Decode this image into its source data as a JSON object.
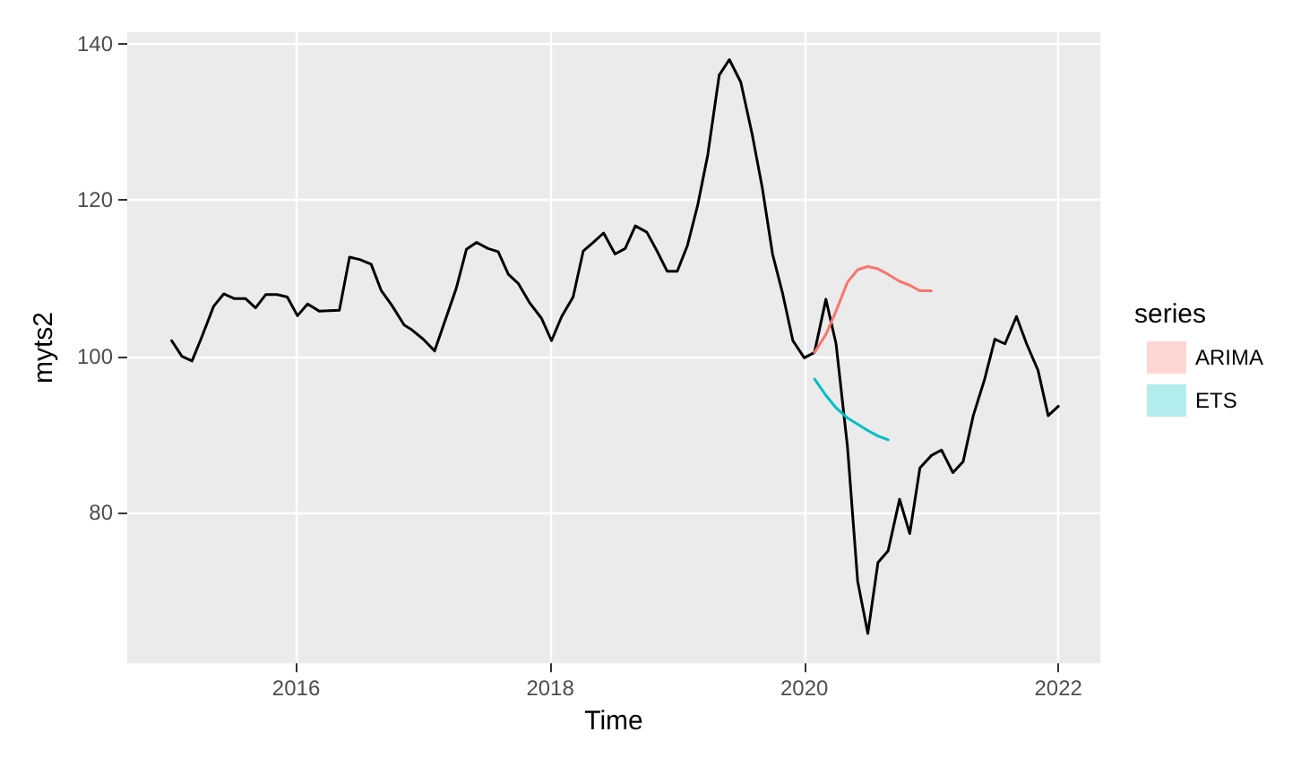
{
  "chart_data": {
    "type": "line",
    "xlabel": "Time",
    "ylabel": "myts2",
    "legend_title": "series",
    "legend": "right",
    "grid": true,
    "marker": "none",
    "line_style": "solid",
    "xlim": [
      2014.67,
      2022.33
    ],
    "xticks": [
      2016,
      2018,
      2020,
      2022
    ],
    "ylim": [
      60.7,
      141.5
    ],
    "yticks": [
      80,
      100,
      120,
      140
    ],
    "series": [
      {
        "color": "#000000",
        "x": [
          2015.02,
          2015.1,
          2015.18,
          2015.26,
          2015.35,
          2015.43,
          2015.51,
          2015.6,
          2015.68,
          2015.76,
          2015.85,
          2015.93,
          2016.01,
          2016.09,
          2016.18,
          2016.34,
          2016.42,
          2016.5,
          2016.59,
          2016.67,
          2016.75,
          2016.85,
          2016.91,
          2017.0,
          2017.09,
          2017.16,
          2017.26,
          2017.34,
          2017.42,
          2017.51,
          2017.59,
          2017.67,
          2017.75,
          2017.84,
          2017.93,
          2018.01,
          2018.09,
          2018.18,
          2018.26,
          2018.34,
          2018.42,
          2018.51,
          2018.59,
          2018.67,
          2018.76,
          2018.84,
          2018.92,
          2019.0,
          2019.08,
          2019.16,
          2019.24,
          2019.33,
          2019.41,
          2019.5,
          2019.59,
          2019.67,
          2019.75,
          2019.83,
          2019.91,
          2020.0,
          2020.08,
          2020.17,
          2020.25,
          2020.34,
          2020.42,
          2020.5,
          2020.58,
          2020.66,
          2020.75,
          2020.83,
          2020.91,
          2021.0,
          2021.08,
          2021.17,
          2021.25,
          2021.33,
          2021.42,
          2021.5,
          2021.58,
          2021.67,
          2021.75,
          2021.84,
          2021.92,
          2022.0
        ],
        "values": [
          102,
          100,
          99.4,
          102.6,
          106.4,
          108,
          107.4,
          107.4,
          106.2,
          107.9,
          107.9,
          107.6,
          105.2,
          106.7,
          105.8,
          105.9,
          112.7,
          112.4,
          111.8,
          108.4,
          106.6,
          104,
          103.4,
          102.2,
          100.7,
          104,
          108.7,
          113.7,
          114.6,
          113.8,
          113.4,
          110.5,
          109.3,
          106.8,
          104.9,
          102,
          105.1,
          107.6,
          113.5,
          114.6,
          115.8,
          113.1,
          113.8,
          116.7,
          115.9,
          113.5,
          110.9,
          110.9,
          114.2,
          119.3,
          125.8,
          136,
          138,
          135.1,
          128.4,
          121.5,
          113.1,
          108,
          102,
          99.8,
          100.5,
          107.3,
          101.6,
          88.4,
          71.2,
          64.5,
          73.6,
          75.1,
          81.7,
          77.3,
          85.7,
          87.3,
          88,
          85.1,
          86.5,
          92.4,
          97.1,
          102.2,
          101.6,
          105.1,
          101.6,
          98.2,
          92.4,
          93.6
        ]
      },
      {
        "name": "ARIMA",
        "color": "#f8766d",
        "x": [
          2020.08,
          2020.17,
          2020.25,
          2020.34,
          2020.42,
          2020.5,
          2020.58,
          2020.66,
          2020.75,
          2020.83,
          2020.91,
          2021.0
        ],
        "values": [
          100.5,
          102.8,
          105.8,
          109.5,
          111.1,
          111.5,
          111.2,
          110.5,
          109.6,
          109.1,
          108.4,
          108.4
        ]
      },
      {
        "name": "ETS",
        "color": "#00bfc4",
        "x": [
          2020.08,
          2020.17,
          2020.25,
          2020.34,
          2020.42,
          2020.5,
          2020.58,
          2020.66
        ],
        "values": [
          97.1,
          95,
          93.4,
          92.1,
          91.3,
          90.5,
          89.8,
          89.3
        ]
      }
    ]
  }
}
